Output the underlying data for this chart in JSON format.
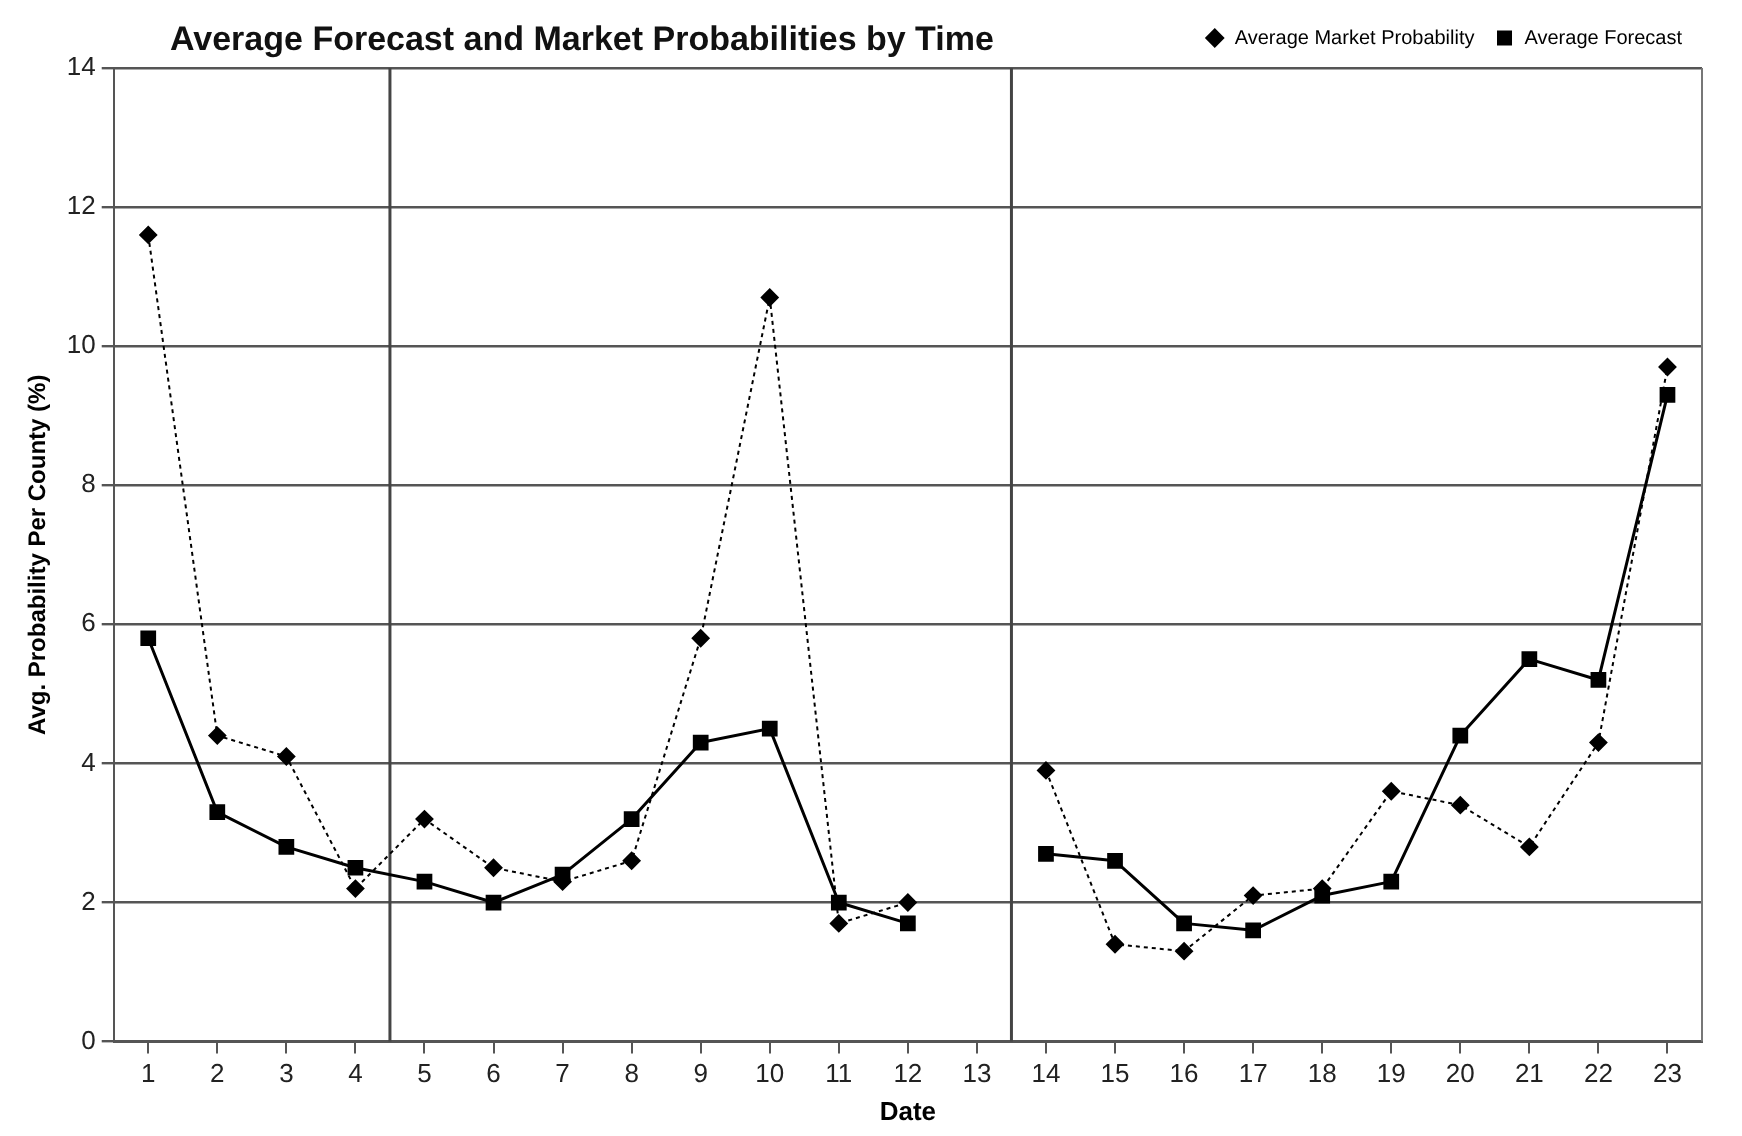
{
  "chart_data": {
    "type": "line",
    "title": "Average Forecast and Market Probabilities by Time",
    "xlabel": "Date",
    "ylabel": "Avg. Probability Per County (%)",
    "x": [
      1,
      2,
      3,
      4,
      5,
      6,
      7,
      8,
      9,
      10,
      11,
      12,
      13,
      14,
      15,
      16,
      17,
      18,
      19,
      20,
      21,
      22,
      23
    ],
    "series": [
      {
        "name": "Average Market Probability",
        "color": "#000000",
        "marker": "diamond",
        "line_style": "dotted",
        "values": [
          11.6,
          4.4,
          4.1,
          2.2,
          3.2,
          2.5,
          2.3,
          2.6,
          5.8,
          10.7,
          1.7,
          2.0,
          null,
          3.9,
          1.4,
          1.3,
          2.1,
          2.2,
          3.6,
          3.4,
          2.8,
          4.3,
          9.7
        ]
      },
      {
        "name": "Average Forecast",
        "color": "#000000",
        "marker": "square",
        "line_style": "solid",
        "values": [
          5.8,
          3.3,
          2.8,
          2.5,
          2.3,
          2.0,
          2.4,
          3.2,
          4.3,
          4.5,
          2.0,
          1.7,
          null,
          2.7,
          2.6,
          1.7,
          1.6,
          2.1,
          2.3,
          4.4,
          5.5,
          5.2,
          9.3
        ]
      }
    ],
    "xlim": [
      0.5,
      23.5
    ],
    "xticks": [
      1,
      2,
      3,
      4,
      5,
      6,
      7,
      8,
      9,
      10,
      11,
      12,
      13,
      14,
      15,
      16,
      17,
      18,
      19,
      20,
      21,
      22,
      23
    ],
    "ylim": [
      0,
      14
    ],
    "yticks": [
      0,
      2,
      4,
      6,
      8,
      10,
      12,
      14
    ],
    "ref_lines": [
      {
        "axis": "x",
        "value": 4.5,
        "color": "#444444"
      },
      {
        "axis": "x",
        "value": 13.5,
        "color": "#444444"
      }
    ],
    "grid": "y",
    "legend": "top right"
  }
}
